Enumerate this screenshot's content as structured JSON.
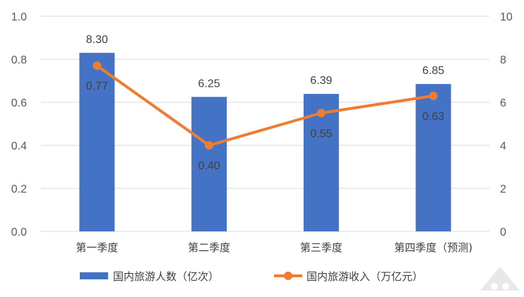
{
  "chart_data": {
    "type": "bar",
    "categories": [
      "第一季度",
      "第二季度",
      "第三季度",
      "第四季度（预测)"
    ],
    "series": [
      {
        "name": "国内旅游人数（亿次）",
        "type": "bar",
        "axis": "right",
        "values": [
          8.3,
          6.25,
          6.39,
          6.85
        ],
        "labels": [
          "8.30",
          "6.25",
          "6.39",
          "6.85"
        ],
        "color": "#4472c4"
      },
      {
        "name": "国内旅游收入（万亿元）",
        "type": "line",
        "axis": "left",
        "values": [
          0.77,
          0.4,
          0.55,
          0.63
        ],
        "labels": [
          "0.77",
          "0.40",
          "0.55",
          "0.63"
        ],
        "color": "#ed7d31"
      }
    ],
    "y_left": {
      "min": 0,
      "max": 1.0,
      "ticks": [
        "0.0",
        "0.2",
        "0.4",
        "0.6",
        "0.8",
        "1.0"
      ]
    },
    "y_right": {
      "min": 0,
      "max": 10,
      "ticks": [
        "0",
        "2",
        "4",
        "6",
        "8",
        "10"
      ]
    },
    "grid": true,
    "legend": "bottom"
  }
}
